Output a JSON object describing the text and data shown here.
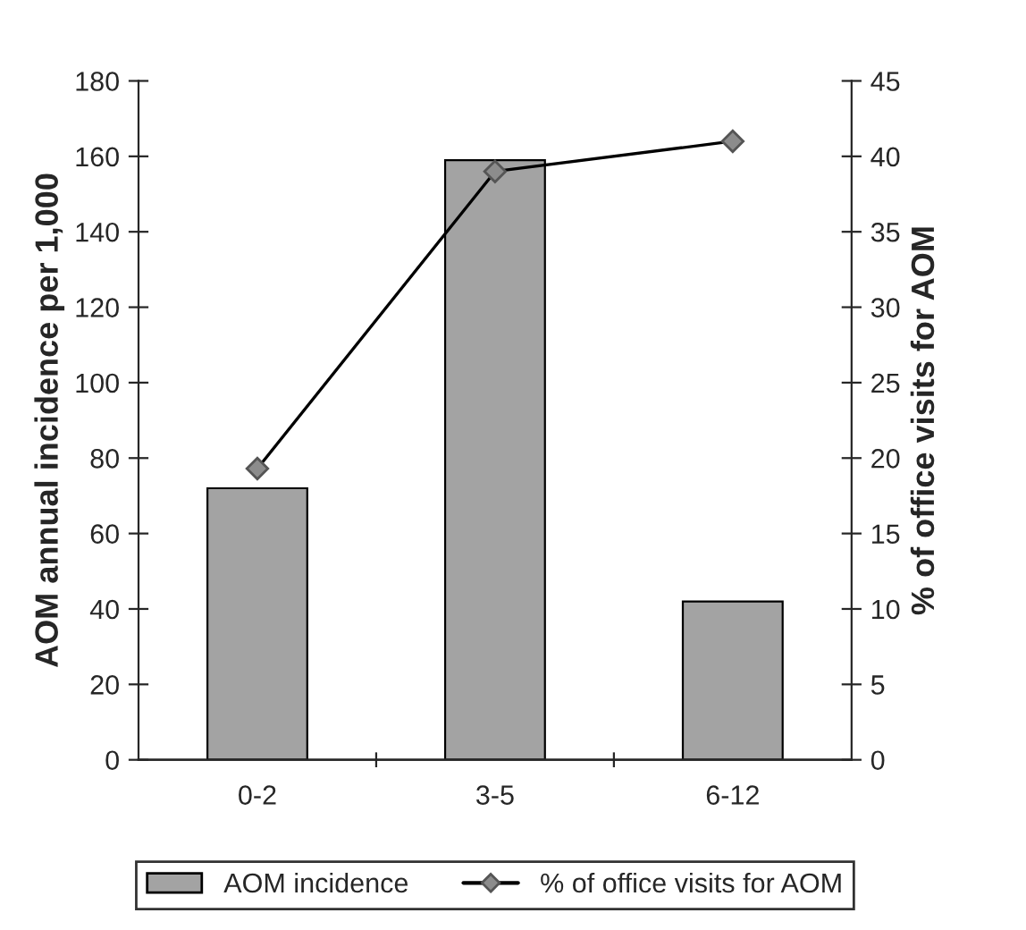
{
  "chart_data": {
    "type": "bar",
    "categories": [
      "0-2",
      "3-5",
      "6-12"
    ],
    "ylabel": "AOM annual incidence per 1,000",
    "y2label": "% of office visits for AOM",
    "ylim": [
      0,
      180
    ],
    "yticks": [
      0,
      20,
      40,
      60,
      80,
      100,
      120,
      140,
      160,
      180
    ],
    "y2lim": [
      0,
      45
    ],
    "y2ticks": [
      0,
      5,
      10,
      15,
      20,
      25,
      30,
      35,
      40,
      45
    ],
    "series": [
      {
        "name": "AOM incidence",
        "color": "#a3a3a3",
        "values": [
          72,
          159,
          42
        ]
      },
      {
        "name": "% of office visits for AOM",
        "type": "line",
        "axis": "y2",
        "color": "#000000",
        "marker": "diamond",
        "values": [
          19.3,
          39,
          41
        ]
      }
    ],
    "legend": "bottom",
    "grid": false
  }
}
